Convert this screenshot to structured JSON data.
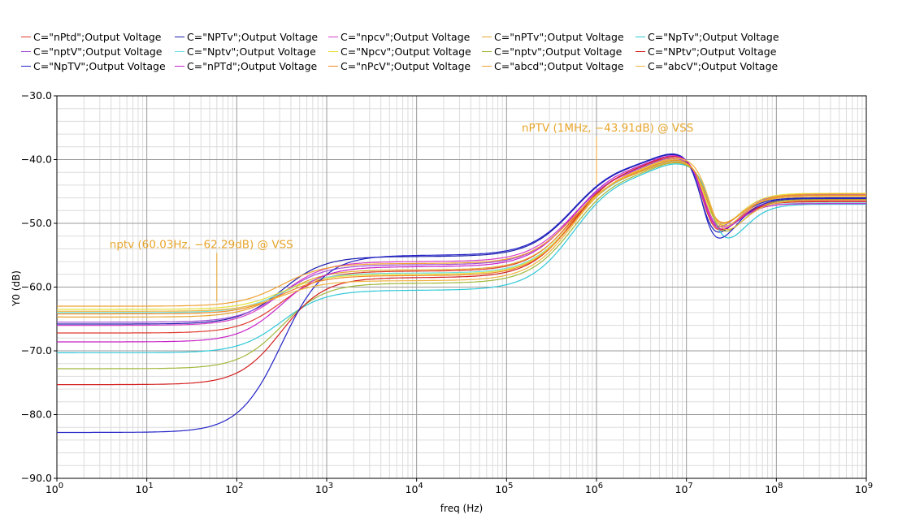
{
  "chart_data": {
    "type": "line",
    "xlabel": "freq (Hz)",
    "ylabel": "Y0 (dB)",
    "xscale": "log",
    "xlim": [
      1,
      1000000000
    ],
    "ylim": [
      -90,
      -30
    ],
    "grid": true,
    "legend_position": "top",
    "x_ticks": [
      "10^0",
      "10^1",
      "10^2",
      "10^3",
      "10^4",
      "10^5",
      "10^6",
      "10^7",
      "10^8",
      "10^9"
    ],
    "y_ticks": [
      "-30.0",
      "-40.0",
      "-50.0",
      "-60.0",
      "-70.0",
      "-80.0",
      "-90.0"
    ],
    "series": [
      {
        "name": "C=\"nPtd\";Output Voltage",
        "color": "#e03a2e",
        "low": -67.2,
        "mid": -57.5,
        "peak": -39.3,
        "notch": -53.6,
        "notch_f": 26000000,
        "hf": -46.3,
        "x_tr": 2.5
      },
      {
        "name": "C=\"NPTv\";Output Voltage",
        "color": "#1d1dad",
        "low": -65.8,
        "mid": -55.2,
        "peak": -38.8,
        "notch": -54.2,
        "notch_f": 25000000,
        "hf": -46.0,
        "x_tr": 2.5
      },
      {
        "name": "C=\"npcv\";Output Voltage",
        "color": "#d93fc8",
        "low": -66.0,
        "mid": -56.0,
        "peak": -39.6,
        "notch": -52.8,
        "notch_f": 27000000,
        "hf": -46.5,
        "x_tr": 2.5
      },
      {
        "name": "C=\"nPTv\";Output Voltage",
        "color": "#e8a52c",
        "low": -64.7,
        "mid": -57.3,
        "peak": -39.9,
        "notch": -52.0,
        "notch_f": 28000000,
        "hf": -45.8,
        "x_tr": 2.5
      },
      {
        "name": "C=\"NpTv\";Output Voltage",
        "color": "#2ec8d8",
        "low": -70.3,
        "mid": -60.5,
        "peak": -40.4,
        "notch": -55.0,
        "notch_f": 32000000,
        "hf": -47.0,
        "x_tr": 2.5
      },
      {
        "name": "C=\"nptV\";Output Voltage",
        "color": "#a44fd6",
        "low": -65.5,
        "mid": -56.5,
        "peak": -39.4,
        "notch": -53.0,
        "notch_f": 26000000,
        "hf": -45.5,
        "x_tr": 2.5
      },
      {
        "name": "C=\"Nptv\";Output Voltage",
        "color": "#6fe0e0",
        "low": -64.0,
        "mid": -57.8,
        "peak": -40.0,
        "notch": -52.4,
        "notch_f": 29000000,
        "hf": -46.8,
        "x_tr": 2.5
      },
      {
        "name": "C=\"Npcv\";Output Voltage",
        "color": "#e6df3a",
        "low": -63.5,
        "mid": -58.0,
        "peak": -39.7,
        "notch": -52.6,
        "notch_f": 27500000,
        "hf": -45.3,
        "x_tr": 2.5
      },
      {
        "name": "C=\"nptv\";Output Voltage",
        "color": "#9fb83a",
        "low": -72.8,
        "mid": -59.4,
        "peak": -40.2,
        "notch": -53.8,
        "notch_f": 30000000,
        "hf": -46.2,
        "x_tr": 2.5
      },
      {
        "name": "C=\"NPtv\";Output Voltage",
        "color": "#d42020",
        "low": -75.3,
        "mid": -58.5,
        "peak": -39.1,
        "notch": -53.3,
        "notch_f": 26500000,
        "hf": -46.6,
        "x_tr": 2.5
      },
      {
        "name": "C=\"NpTV\";Output Voltage",
        "color": "#2424c8",
        "low": -82.8,
        "mid": -55.0,
        "peak": -38.7,
        "notch": -55.5,
        "notch_f": 25500000,
        "hf": -46.1,
        "x_tr": 2.5
      },
      {
        "name": "C=\"nPTd\";Output Voltage",
        "color": "#c822c8",
        "low": -68.6,
        "mid": -56.8,
        "peak": -39.0,
        "notch": -53.1,
        "notch_f": 26200000,
        "hf": -46.9,
        "x_tr": 2.5
      },
      {
        "name": "C=\"nPcV\";Output Voltage",
        "color": "#f08a24",
        "low": -64.2,
        "mid": -58.2,
        "peak": -39.8,
        "notch": -52.2,
        "notch_f": 28500000,
        "hf": -45.6,
        "x_tr": 2.5
      },
      {
        "name": "C=\"abcd\";Output Voltage",
        "color": "#f0a030",
        "low": -63.0,
        "mid": -56.3,
        "peak": -40.1,
        "notch": -52.9,
        "notch_f": 29500000,
        "hf": -45.4,
        "x_tr": 2.5
      },
      {
        "name": "C=\"abcV\";Output Voltage",
        "color": "#f0b440",
        "low": -63.8,
        "mid": -59.0,
        "peak": -39.5,
        "notch": -53.4,
        "notch_f": 30500000,
        "hf": -46.4,
        "x_tr": 2.5
      }
    ],
    "annotations": [
      {
        "text": "nptv (60.03Hz, -62.29dB) @ VSS",
        "x": 60.03,
        "y": -62.29
      },
      {
        "text": "nPTV (1MHz, -43.91dB) @ VSS",
        "x": 1000000,
        "y": -43.91
      }
    ]
  }
}
